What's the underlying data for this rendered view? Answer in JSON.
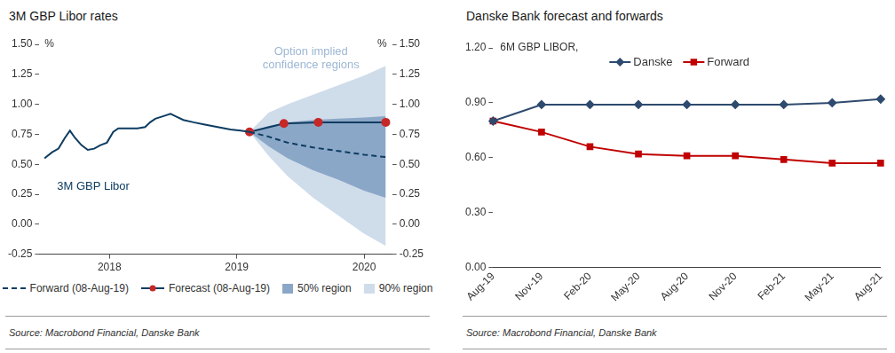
{
  "chart_data": [
    {
      "type": "line",
      "title": "3M GBP Libor rates",
      "ylabel": "%",
      "y2label": "%",
      "annotations": [
        "Option implied confidence regions",
        "3M GBP Libor"
      ],
      "source": "Source: Macrobond Financial, Danske Bank",
      "xlim": [
        2017.95,
        2020.72
      ],
      "xticks": [
        {
          "value": 2018.5,
          "label": "2018"
        },
        {
          "value": 2019.5,
          "label": "2019"
        },
        {
          "value": 2020.5,
          "label": "2020"
        }
      ],
      "ylim": [
        -0.25,
        1.5
      ],
      "yticks": [
        -0.25,
        {
          "value": 0,
          "label": "0.00"
        },
        0.25,
        {
          "value": 0.5,
          "label": "0.50"
        },
        0.75,
        {
          "value": 1,
          "label": "1.00"
        },
        1.25,
        {
          "value": 1.5,
          "label": "1.50"
        }
      ],
      "y2lim": [
        -0.25,
        1.5
      ],
      "y2ticks": [
        -0.25,
        {
          "value": 0,
          "label": "0.00"
        },
        0.25,
        {
          "value": 0.5,
          "label": "0.50"
        },
        0.75,
        {
          "value": 1,
          "label": "1.00"
        },
        1.25,
        {
          "value": 1.5,
          "label": "1.50"
        }
      ],
      "grid": false,
      "legend": "bottom",
      "series": [
        {
          "type": "line",
          "color": "#0d3c61",
          "line_style": "solid",
          "marker": "none",
          "x": [
            2017.99,
            2018.05,
            2018.1,
            2018.15,
            2018.19,
            2018.23,
            2018.28,
            2018.33,
            2018.38,
            2018.43,
            2018.48,
            2018.53,
            2018.57,
            2018.65,
            2018.72,
            2018.78,
            2018.82,
            2018.86,
            2018.92,
            2018.98,
            2019.02,
            2019.08,
            2019.16,
            2019.25,
            2019.35,
            2019.45,
            2019.53,
            2019.6
          ],
          "values": [
            0.55,
            0.6,
            0.63,
            0.72,
            0.78,
            0.72,
            0.66,
            0.62,
            0.63,
            0.66,
            0.68,
            0.77,
            0.8,
            0.8,
            0.8,
            0.81,
            0.85,
            0.88,
            0.9,
            0.92,
            0.9,
            0.87,
            0.85,
            0.83,
            0.81,
            0.79,
            0.78,
            0.77
          ]
        },
        {
          "name": "Forward (08-Aug-19)",
          "type": "line",
          "color": "#0d3c61",
          "line_style": "dashed",
          "marker": "none",
          "x": [
            2019.6,
            2019.75,
            2019.9,
            2020.1,
            2020.3,
            2020.5,
            2020.67
          ],
          "values": [
            0.77,
            0.73,
            0.68,
            0.64,
            0.61,
            0.58,
            0.56
          ]
        },
        {
          "name": "Forecast (08-Aug-19)",
          "type": "line",
          "color": "#0d3c61",
          "line_style": "solid",
          "marker": "circle",
          "colors": [
            "#c62828",
            "#c62828",
            "#c62828",
            "#c62828"
          ],
          "x": [
            2019.6,
            2019.87,
            2020.14,
            2020.67
          ],
          "values": [
            0.77,
            0.84,
            0.85,
            0.85
          ]
        },
        {
          "name": "50% region",
          "type": "area",
          "color": "#8ba7c7",
          "x": [
            2019.6,
            2019.75,
            2019.9,
            2020.1,
            2020.3,
            2020.5,
            2020.67
          ],
          "lower": [
            0.77,
            0.65,
            0.55,
            0.45,
            0.37,
            0.28,
            0.22
          ],
          "upper": [
            0.77,
            0.82,
            0.85,
            0.87,
            0.88,
            0.89,
            0.9
          ]
        },
        {
          "name": "90% region",
          "type": "area",
          "color": "#cfdcea",
          "x": [
            2019.6,
            2019.75,
            2019.9,
            2020.1,
            2020.3,
            2020.5,
            2020.67
          ],
          "lower": [
            0.77,
            0.57,
            0.4,
            0.22,
            0.07,
            -0.08,
            -0.18
          ],
          "upper": [
            0.77,
            0.93,
            1.0,
            1.08,
            1.16,
            1.24,
            1.32
          ]
        }
      ]
    },
    {
      "type": "line",
      "title": "Danske Bank forecast and forwards",
      "subtitle": "6M GBP LIBOR,",
      "source": "Source: Macrobond Financial, Danske Bank",
      "categories": [
        "Aug-19",
        "Nov-19",
        "Feb-20",
        "May-20",
        "Aug-20",
        "Nov-20",
        "Feb-21",
        "May-21",
        "Aug-21"
      ],
      "ylim": [
        0,
        1.2
      ],
      "yticks": [
        {
          "value": 0,
          "label": "0.00"
        },
        {
          "value": 0.3,
          "label": "0.30"
        },
        {
          "value": 0.6,
          "label": "0.60"
        },
        {
          "value": 0.9,
          "label": "0.90"
        },
        {
          "value": 1.2,
          "label": "1.20"
        }
      ],
      "grid": false,
      "legend": "top",
      "series": [
        {
          "name": "Danske",
          "color": "#2e4a6e",
          "marker": "diamond",
          "line_style": "solid",
          "values": [
            0.8,
            0.89,
            0.89,
            0.89,
            0.89,
            0.89,
            0.89,
            0.9,
            0.92
          ]
        },
        {
          "name": "Forward",
          "color": "#c00000",
          "marker": "square",
          "line_style": "solid",
          "values": [
            0.8,
            0.74,
            0.66,
            0.62,
            0.61,
            0.61,
            0.59,
            0.57,
            0.57
          ]
        }
      ]
    }
  ]
}
